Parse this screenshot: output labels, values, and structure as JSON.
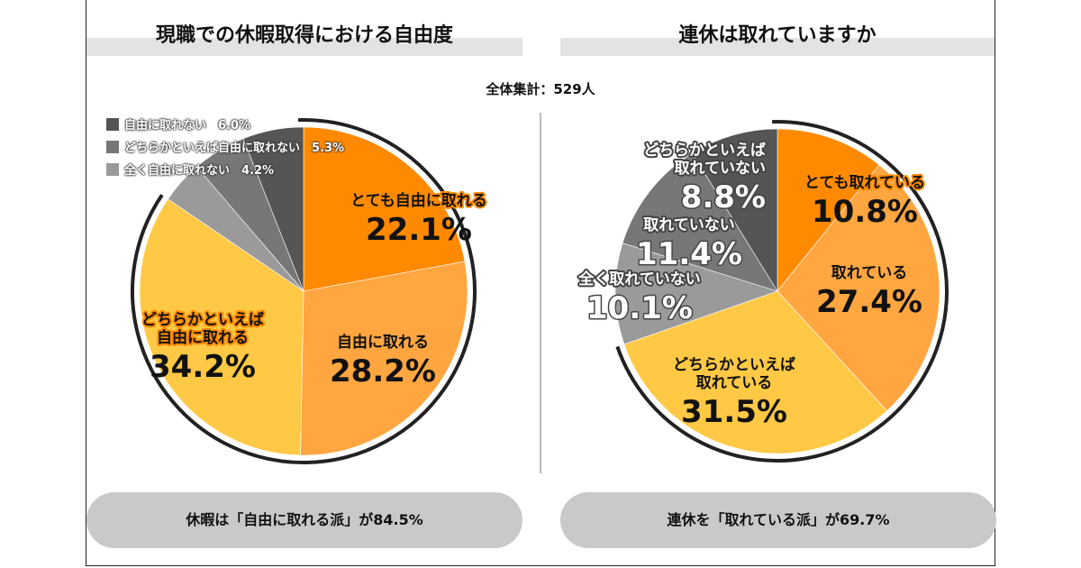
{
  "header": {
    "total": "全体集計：529人"
  },
  "chart_data": [
    {
      "type": "pie",
      "title": "現職での休暇取得における自由度",
      "slices": [
        {
          "label": "とても自由に取れる",
          "value": 22.1,
          "display": "22.1%",
          "color": "#ff8a00"
        },
        {
          "label": "自由に取れる",
          "value": 28.2,
          "display": "28.2%",
          "color": "#ffa640"
        },
        {
          "label": "どちらかといえば自由に取れる",
          "value": 34.2,
          "display": "34.2%",
          "color": "#ffc845"
        },
        {
          "label": "全く自由に取れない",
          "value": 4.2,
          "display": "4.2%",
          "color": "#9a9a9a"
        },
        {
          "label": "どちらかといえば自由に取れない",
          "value": 5.3,
          "display": "5.3%",
          "color": "#777777"
        },
        {
          "label": "自由に取れない",
          "value": 6.0,
          "display": "6.0%",
          "color": "#555555"
        }
      ],
      "highlight_total": 84.5,
      "summary": "休暇は「自由に取れる派」が84.5%"
    },
    {
      "type": "pie",
      "title": "連休は取れていますか",
      "slices": [
        {
          "label": "とても取れている",
          "value": 10.8,
          "display": "10.8%",
          "color": "#ff8a00"
        },
        {
          "label": "取れている",
          "value": 27.4,
          "display": "27.4%",
          "color": "#ffa640"
        },
        {
          "label": "どちらかといえば取れている",
          "value": 31.5,
          "display": "31.5%",
          "color": "#ffc845"
        },
        {
          "label": "全く取れていない",
          "value": 10.1,
          "display": "10.1%",
          "color": "#9a9a9a"
        },
        {
          "label": "取れていない",
          "value": 11.4,
          "display": "11.4%",
          "color": "#777777"
        },
        {
          "label": "どちらかといえば取れていない",
          "value": 8.8,
          "display": "8.8%",
          "color": "#555555"
        }
      ],
      "highlight_total": 69.7,
      "summary": "連休を「取れている派」が69.7%"
    }
  ]
}
